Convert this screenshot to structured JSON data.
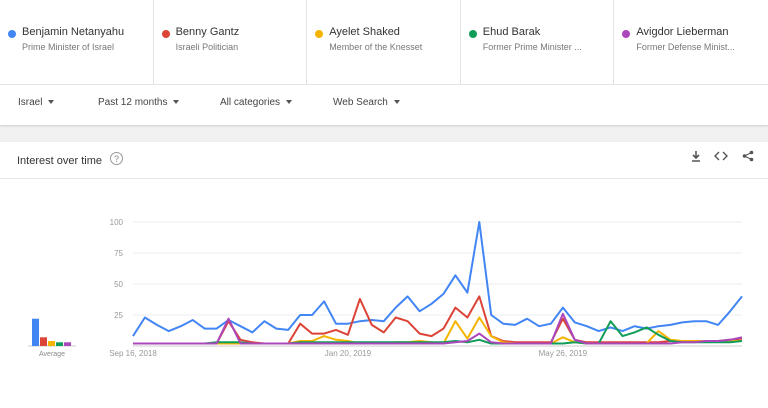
{
  "terms": [
    {
      "name": "Benjamin Netanyahu",
      "sub": "Prime Minister of Israel",
      "color": "#4285f4"
    },
    {
      "name": "Benny Gantz",
      "sub": "Israeli Politician",
      "color": "#db4437"
    },
    {
      "name": "Ayelet Shaked",
      "sub": "Member of the Knesset",
      "color": "#f4b400"
    },
    {
      "name": "Ehud Barak",
      "sub": "Former Prime Minister ...",
      "color": "#0f9d58"
    },
    {
      "name": "Avigdor Lieberman",
      "sub": "Former Defense Minist...",
      "color": "#ab47bc"
    }
  ],
  "filters": {
    "region": "Israel",
    "time": "Past 12 months",
    "category": "All categories",
    "search_type": "Web Search"
  },
  "card": {
    "title": "Interest over time",
    "help": "?",
    "average_label": "Average"
  },
  "icons": [
    "download-icon",
    "embed-icon",
    "share-icon"
  ],
  "chart_data": {
    "type": "line",
    "ylim": [
      0,
      100
    ],
    "yticks": [
      25,
      50,
      75,
      100
    ],
    "xtick_labels": [
      "Sep 16, 2018",
      "Jan 20, 2019",
      "May 26, 2019"
    ],
    "xtick_index": [
      0,
      18,
      36
    ],
    "averages": [
      {
        "name": "Benjamin Netanyahu",
        "value": 22
      },
      {
        "name": "Benny Gantz",
        "value": 7
      },
      {
        "name": "Ayelet Shaked",
        "value": 4
      },
      {
        "name": "Ehud Barak",
        "value": 3
      },
      {
        "name": "Avigdor Lieberman",
        "value": 3
      }
    ],
    "series": [
      {
        "name": "Benjamin Netanyahu",
        "color": "#4285f4",
        "values": [
          8,
          23,
          17,
          12,
          16,
          21,
          14,
          14,
          21,
          16,
          11,
          20,
          14,
          13,
          25,
          25,
          36,
          18,
          18,
          20,
          21,
          20,
          31,
          40,
          28,
          34,
          42,
          57,
          43,
          100,
          25,
          18,
          17,
          22,
          16,
          18,
          31,
          19,
          16,
          12,
          15,
          12,
          16,
          14,
          16,
          17,
          19,
          20,
          20,
          17,
          28,
          40
        ]
      },
      {
        "name": "Benny Gantz",
        "color": "#db4437",
        "values": [
          2,
          2,
          2,
          2,
          2,
          2,
          2,
          2,
          20,
          5,
          3,
          2,
          2,
          2,
          18,
          10,
          10,
          13,
          9,
          38,
          17,
          11,
          23,
          20,
          10,
          8,
          14,
          31,
          23,
          40,
          8,
          4,
          3,
          3,
          3,
          3,
          22,
          5,
          3,
          3,
          3,
          3,
          3,
          3,
          3,
          4,
          4,
          4,
          4,
          4,
          5,
          6
        ]
      },
      {
        "name": "Ayelet Shaked",
        "color": "#f4b400",
        "values": [
          2,
          2,
          2,
          2,
          2,
          2,
          2,
          2,
          2,
          2,
          2,
          2,
          2,
          2,
          4,
          4,
          8,
          5,
          4,
          2,
          3,
          2,
          3,
          3,
          4,
          3,
          2,
          20,
          6,
          23,
          8,
          3,
          2,
          2,
          2,
          2,
          7,
          3,
          2,
          2,
          2,
          2,
          2,
          2,
          12,
          5,
          4,
          4,
          4,
          4,
          4,
          4
        ]
      },
      {
        "name": "Ehud Barak",
        "color": "#0f9d58",
        "values": [
          2,
          2,
          2,
          2,
          2,
          2,
          2,
          3,
          3,
          3,
          2,
          2,
          2,
          2,
          3,
          3,
          3,
          3,
          3,
          3,
          3,
          3,
          3,
          3,
          3,
          3,
          3,
          4,
          3,
          5,
          2,
          2,
          2,
          2,
          2,
          2,
          2,
          3,
          2,
          2,
          20,
          8,
          11,
          15,
          9,
          4,
          3,
          3,
          3,
          3,
          3,
          4
        ]
      },
      {
        "name": "Avigdor Lieberman",
        "color": "#ab47bc",
        "values": [
          2,
          2,
          2,
          2,
          2,
          2,
          2,
          2,
          22,
          2,
          2,
          2,
          2,
          2,
          2,
          2,
          2,
          2,
          2,
          2,
          2,
          2,
          2,
          2,
          2,
          2,
          2,
          3,
          4,
          10,
          3,
          2,
          2,
          2,
          2,
          2,
          26,
          5,
          2,
          2,
          2,
          2,
          2,
          2,
          2,
          2,
          3,
          3,
          4,
          4,
          5,
          7
        ]
      }
    ]
  }
}
